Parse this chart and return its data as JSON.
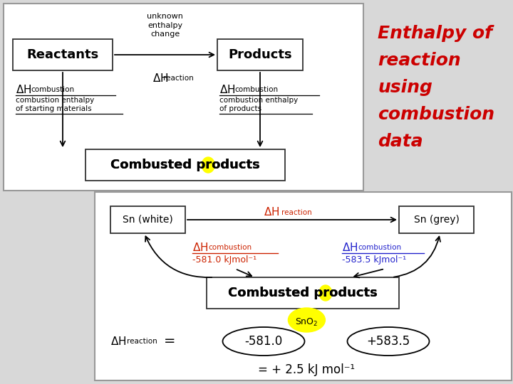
{
  "bg_color": "#d8d8d8",
  "title_text_lines": [
    "Enthalpy of",
    "reaction",
    "using",
    "combustion",
    "data"
  ],
  "title_color": "#cc0000",
  "top_box1": "Reactants",
  "top_box2": "Products",
  "top_box3": "Combusted products",
  "bottom_box1": "Sn (white)",
  "bottom_box2": "Sn (grey)",
  "bottom_box3": "Combusted products",
  "bottom_dH_left_val": "-581.0 kJmol⁻¹",
  "bottom_dH_right_val": "-583.5 kJmol⁻¹",
  "bottom_oval1": "-581.0",
  "bottom_oval2": "+583.5",
  "bottom_result": "= + 2.5 kJ mol⁻¹",
  "red_color": "#cc2200",
  "blue_color": "#2222cc",
  "panel_ec": "#999999",
  "box_ec": "#333333"
}
